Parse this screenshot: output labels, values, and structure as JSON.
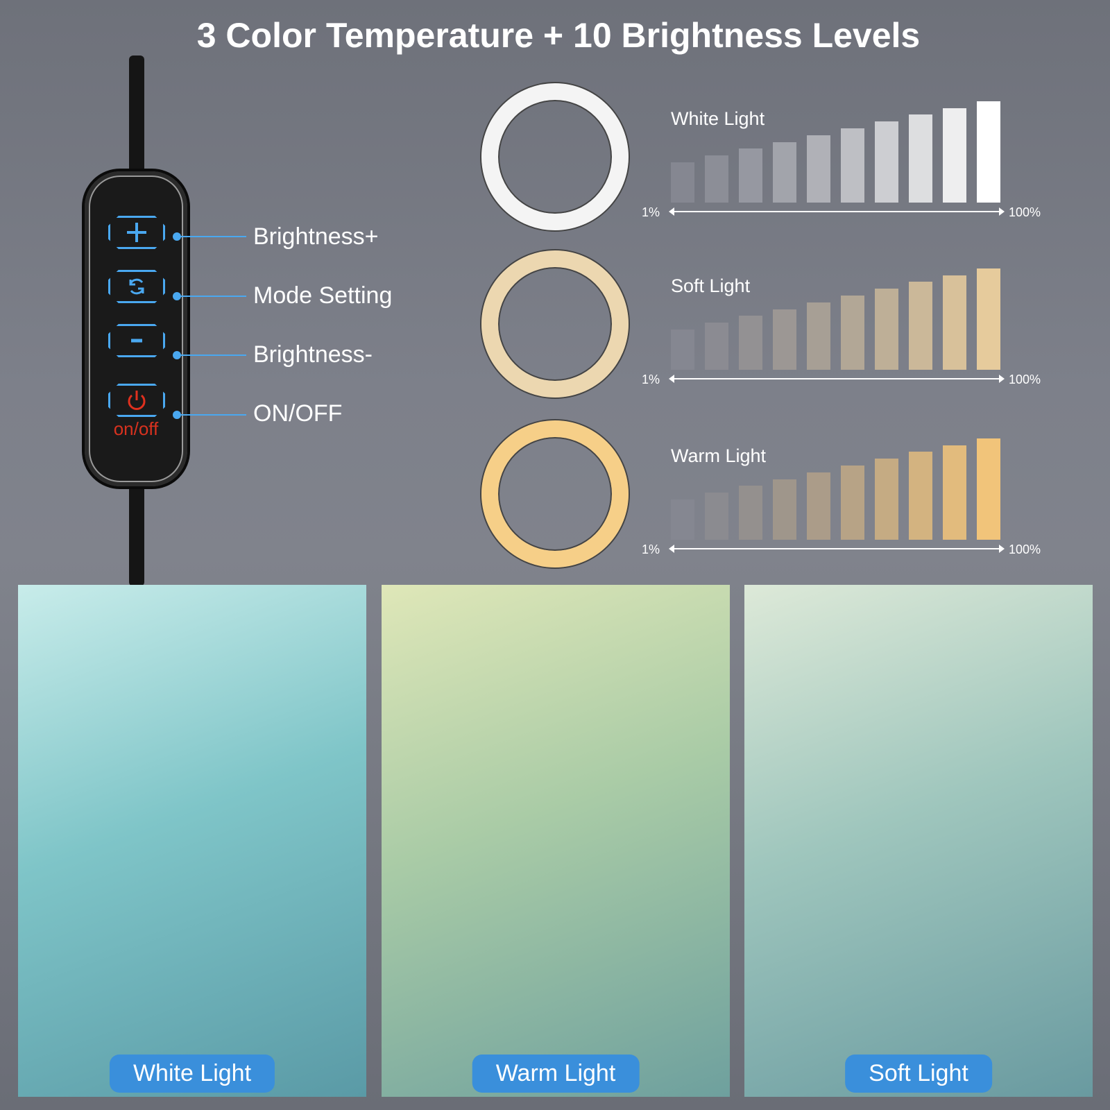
{
  "title": "3 Color Temperature + 10 Brightness Levels",
  "remote": {
    "buttons": [
      {
        "label": "Brightness+",
        "icon": "plus-icon"
      },
      {
        "label": "Mode Setting",
        "icon": "refresh-icon"
      },
      {
        "label": "Brightness-",
        "icon": "minus-icon"
      },
      {
        "label": "ON/OFF",
        "icon": "power-icon"
      }
    ],
    "power_text": "on/off",
    "accent": "#4aa8f0",
    "power_color": "#e0301e"
  },
  "modes": [
    {
      "label": "White Light",
      "min": "1%",
      "max": "100%",
      "levels": 10,
      "ring_color": "#f4f4f4",
      "bar_start": "#858791",
      "bar_end": "#ffffff"
    },
    {
      "label": "Soft Light",
      "min": "1%",
      "max": "100%",
      "levels": 10,
      "ring_color": "#ecd7b0",
      "bar_start": "#858791",
      "bar_end": "#e6cb9c"
    },
    {
      "label": "Warm Light",
      "min": "1%",
      "max": "100%",
      "levels": 10,
      "ring_color": "#f6cf88",
      "bar_start": "#858791",
      "bar_end": "#f1c47a"
    }
  ],
  "photos": [
    {
      "label": "White Light"
    },
    {
      "label": "Warm Light"
    },
    {
      "label": "Soft Light"
    }
  ]
}
